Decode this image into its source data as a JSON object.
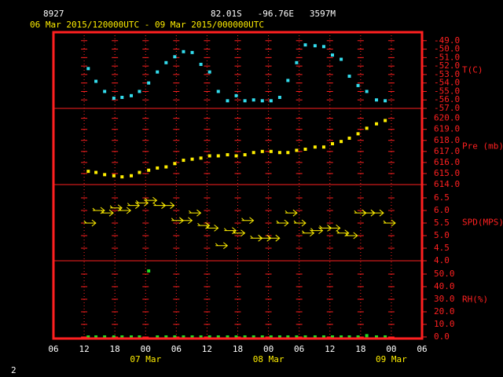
{
  "header": {
    "station": "8927",
    "location": "82.01S   -96.76E   3597M",
    "period": "06 Mar 2015/120000UTC - 09 Mar 2015/000000UTC"
  },
  "footer": "2",
  "chart_data": [
    {
      "type": "scatter",
      "ylabel": "T(C)",
      "color": "#33ddee",
      "xlim": [
        6,
        78
      ],
      "x": [
        12.8,
        14.3,
        16.0,
        17.8,
        19.4,
        21.2,
        22.8,
        24.6,
        26.3,
        28.0,
        29.7,
        31.4,
        33.1,
        34.8,
        36.5,
        38.2,
        40.0,
        41.7,
        43.4,
        45.1,
        46.8,
        48.5,
        50.2,
        51.8,
        53.5,
        55.2,
        57.1,
        58.8,
        60.5,
        62.2,
        63.8,
        65.5,
        67.2,
        69.1,
        70.8
      ],
      "values": [
        -52.3,
        -53.8,
        -55.0,
        -55.8,
        -55.7,
        -55.5,
        -55.0,
        -54.0,
        -52.7,
        -51.6,
        -50.9,
        -50.3,
        -50.4,
        -51.8,
        -52.7,
        -55.0,
        -56.1,
        -55.5,
        -56.1,
        -56.0,
        -56.1,
        -56.1,
        -55.7,
        -53.7,
        -51.6,
        -49.5,
        -49.6,
        -49.7,
        -50.7,
        -51.2,
        -53.2,
        -54.3,
        -55.0,
        -56.0,
        -56.1
      ],
      "ylim": [
        -57.0,
        -48.0
      ],
      "yticks": [
        {
          "value": -57,
          "label": "-57.0"
        },
        {
          "value": -56,
          "label": "-56.0"
        },
        {
          "value": -55,
          "label": "-55.0"
        },
        {
          "value": -54,
          "label": "-54.0"
        },
        {
          "value": -53,
          "label": "-53.0"
        },
        {
          "value": -52,
          "label": "-52.0"
        },
        {
          "value": -51,
          "label": "-51.0"
        },
        {
          "value": -50,
          "label": "-50.0"
        },
        {
          "value": -49,
          "label": "-49.0"
        }
      ]
    },
    {
      "type": "scatter",
      "ylabel": "Pre (mb)",
      "color": "#ffee00",
      "xlim": [
        6,
        78
      ],
      "x": [
        12.8,
        14.3,
        16.0,
        17.8,
        19.4,
        21.2,
        22.8,
        24.6,
        26.3,
        28.0,
        29.7,
        31.4,
        33.1,
        34.8,
        36.5,
        38.2,
        40.0,
        41.7,
        43.4,
        45.1,
        46.8,
        48.5,
        50.2,
        51.8,
        53.5,
        55.2,
        57.1,
        58.8,
        60.5,
        62.2,
        63.8,
        65.5,
        67.2,
        69.1,
        70.8
      ],
      "values": [
        615.2,
        615.1,
        614.9,
        614.8,
        614.7,
        614.8,
        615.1,
        615.3,
        615.5,
        615.6,
        615.9,
        616.2,
        616.3,
        616.4,
        616.6,
        616.6,
        616.7,
        616.6,
        616.7,
        616.9,
        617.0,
        617.0,
        616.9,
        616.9,
        617.1,
        617.2,
        617.4,
        617.4,
        617.7,
        617.9,
        618.2,
        618.6,
        619.1,
        619.5,
        619.8
      ],
      "ylim": [
        614.0,
        620.9
      ],
      "yticks": [
        {
          "value": 614,
          "label": "614.0"
        },
        {
          "value": 615,
          "label": "615.0"
        },
        {
          "value": 616,
          "label": "616.0"
        },
        {
          "value": 617,
          "label": "617.0"
        },
        {
          "value": 618,
          "label": "618.0"
        },
        {
          "value": 619,
          "label": "619.0"
        },
        {
          "value": 620,
          "label": "620.0"
        }
      ]
    },
    {
      "type": "wind",
      "ylabel": "SPD(MPS)",
      "color": "#ffee00",
      "xlim": [
        6,
        78
      ],
      "x": [
        13.2,
        14.9,
        16.6,
        18.3,
        20.0,
        21.7,
        23.4,
        25.1,
        26.8,
        28.5,
        30.3,
        32.0,
        33.7,
        35.4,
        37.1,
        38.9,
        40.6,
        42.3,
        44.0,
        45.7,
        47.4,
        49.1,
        50.8,
        52.5,
        54.2,
        55.8,
        57.5,
        59.2,
        60.9,
        62.6,
        64.3,
        66.0,
        67.7,
        69.4,
        71.7
      ],
      "values": [
        5.5,
        6.0,
        5.9,
        6.1,
        6.0,
        6.2,
        6.3,
        6.4,
        6.2,
        6.2,
        5.6,
        5.6,
        5.9,
        5.4,
        5.3,
        4.6,
        5.2,
        5.1,
        5.6,
        4.9,
        4.9,
        4.9,
        5.5,
        5.9,
        5.5,
        5.1,
        5.2,
        5.3,
        5.3,
        5.1,
        5.0,
        5.9,
        5.9,
        5.9,
        5.5
      ],
      "ylim": [
        4.0,
        7.03
      ],
      "yticks": [
        {
          "value": 4,
          "label": "4.0"
        },
        4.5,
        {
          "value": 5,
          "label": "5.0"
        },
        5.5,
        {
          "value": 6,
          "label": "6.0"
        },
        6.5
      ]
    },
    {
      "type": "scatter",
      "ylabel": "RH(%)",
      "color": "#22dd22",
      "xlim": [
        6,
        78
      ],
      "x": [
        12.8,
        14.3,
        16.0,
        17.8,
        19.4,
        21.2,
        22.8,
        24.6,
        26.3,
        28.0,
        29.7,
        31.4,
        33.1,
        34.8,
        36.5,
        38.2,
        40.0,
        41.7,
        43.4,
        45.1,
        46.8,
        48.5,
        50.2,
        51.8,
        53.5,
        55.2,
        57.1,
        58.8,
        60.5,
        62.2,
        63.8,
        65.5,
        67.2,
        69.1,
        70.8
      ],
      "values": [
        0,
        0,
        0,
        0,
        0,
        0,
        0,
        52.5,
        0,
        0,
        0,
        0,
        0,
        0,
        0,
        0,
        0,
        0,
        0,
        0,
        0,
        0,
        0,
        0,
        0,
        0,
        0,
        0,
        0,
        0,
        0,
        0,
        1.0,
        0,
        0
      ],
      "ylim": [
        -1.25,
        60.6
      ],
      "yticks": [
        {
          "value": 0,
          "label": "0.0"
        },
        {
          "value": 10,
          "label": "10.0"
        },
        {
          "value": 20,
          "label": "20.0"
        },
        {
          "value": 30,
          "label": "30.0"
        },
        {
          "value": 40,
          "label": "40.0"
        },
        {
          "value": 50,
          "label": "50.0"
        }
      ],
      "xticks": [
        {
          "value": 6,
          "label": "06"
        },
        {
          "value": 12,
          "label": "12"
        },
        {
          "value": 18,
          "label": "18"
        },
        {
          "value": 24,
          "label": "00"
        },
        {
          "value": 30,
          "label": "06"
        },
        {
          "value": 36,
          "label": "12"
        },
        {
          "value": 42,
          "label": "18"
        },
        {
          "value": 48,
          "label": "00"
        },
        {
          "value": 54,
          "label": "06"
        },
        {
          "value": 60,
          "label": "12"
        },
        {
          "value": 66,
          "label": "18"
        },
        {
          "value": 72,
          "label": "00"
        },
        {
          "value": 78,
          "label": "06"
        }
      ],
      "date_labels": [
        {
          "value": 24,
          "label": "07 Mar"
        },
        {
          "value": 48,
          "label": "08 Mar"
        },
        {
          "value": 72,
          "label": "09 Mar"
        }
      ]
    }
  ]
}
